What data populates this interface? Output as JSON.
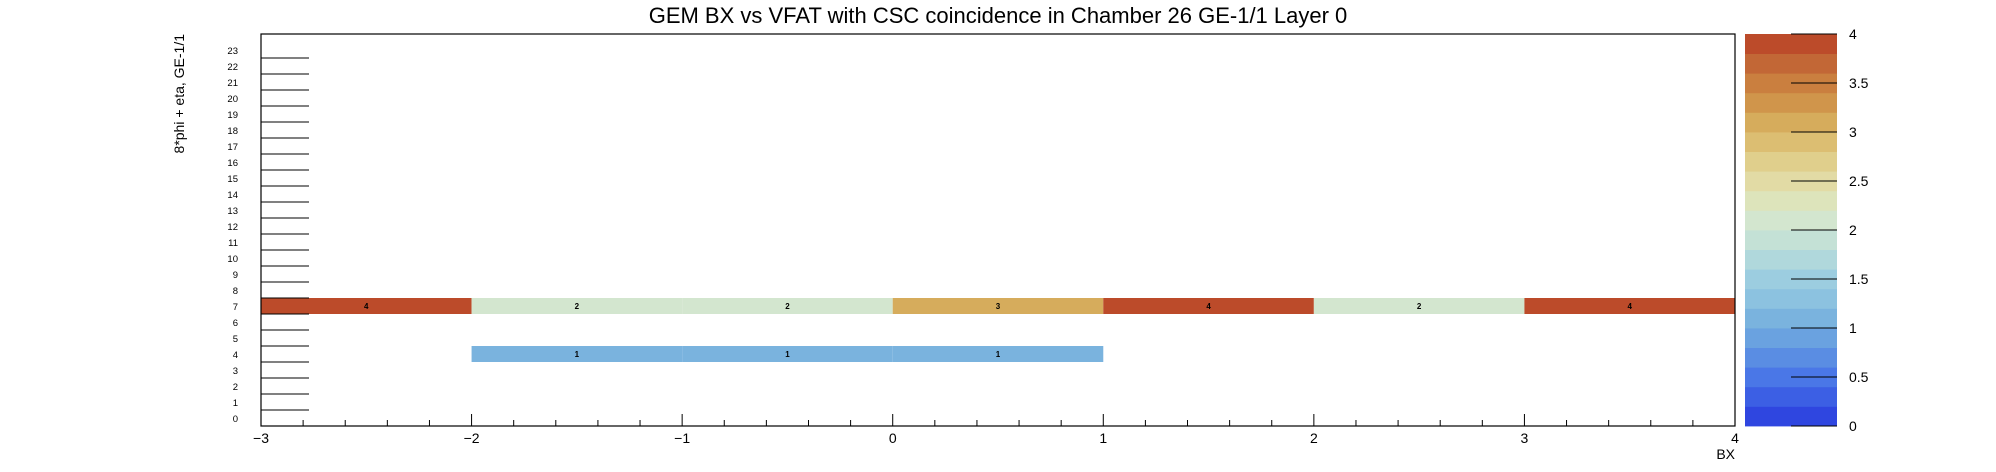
{
  "chart_data": {
    "type": "heatmap",
    "title": "GEM BX vs VFAT with CSC coincidence in Chamber 26 GE-1/1 Layer 0",
    "xlabel": "BX",
    "ylabel": "8*phi + eta, GE-1/1",
    "xlim": [
      -3,
      4
    ],
    "ylim": [
      0,
      24
    ],
    "x_ticks": [
      "−3",
      "−2",
      "−1",
      "0",
      "1",
      "2",
      "3",
      "4"
    ],
    "y_ticks": [
      "0",
      "1",
      "2",
      "3",
      "4",
      "5",
      "6",
      "7",
      "8",
      "9",
      "10",
      "11",
      "12",
      "13",
      "14",
      "15",
      "16",
      "17",
      "18",
      "19",
      "20",
      "21",
      "22",
      "23"
    ],
    "z_range": [
      0,
      4
    ],
    "z_ticks": [
      "0",
      "0.5",
      "1",
      "1.5",
      "2",
      "2.5",
      "3",
      "3.5",
      "4"
    ],
    "cells": [
      {
        "bx": -3,
        "row": 7,
        "value": 4
      },
      {
        "bx": -2,
        "row": 7,
        "value": 2
      },
      {
        "bx": -1,
        "row": 7,
        "value": 2
      },
      {
        "bx": 0,
        "row": 7,
        "value": 3
      },
      {
        "bx": 1,
        "row": 7,
        "value": 4
      },
      {
        "bx": 2,
        "row": 7,
        "value": 2
      },
      {
        "bx": 3,
        "row": 7,
        "value": 4
      },
      {
        "bx": -2,
        "row": 4,
        "value": 1
      },
      {
        "bx": -1,
        "row": 4,
        "value": 1
      },
      {
        "bx": 0,
        "row": 4,
        "value": 1
      }
    ],
    "palette": [
      "#2f46e0",
      "#3c5fe4",
      "#4a77e7",
      "#5a8de3",
      "#6aa2e0",
      "#7ab3de",
      "#8cc2e0",
      "#9ccde0",
      "#b0d8dc",
      "#c4e1d6",
      "#d3e6cf",
      "#dde4bb",
      "#e2dba5",
      "#e0cf8c",
      "#dcbe72",
      "#d6ac5c",
      "#d0954b",
      "#ca7f3f",
      "#c26736",
      "#bc4b2a"
    ],
    "grid": false,
    "legend": "right"
  }
}
